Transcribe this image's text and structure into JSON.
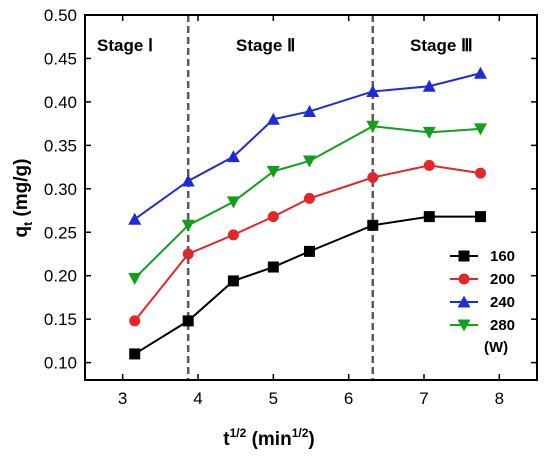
{
  "chart_data": {
    "type": "line",
    "xlim": [
      2.5,
      8.5
    ],
    "ylim": [
      0.08,
      0.5
    ],
    "xticks": [
      3,
      4,
      5,
      6,
      7,
      8
    ],
    "yticks": [
      0.1,
      0.15,
      0.2,
      0.25,
      0.3,
      0.35,
      0.4,
      0.45,
      0.5
    ],
    "ytick_labels": [
      "0.10",
      "0.15",
      "0.20",
      "0.25",
      "0.30",
      "0.35",
      "0.40",
      "0.45",
      "0.50"
    ],
    "xlabel": {
      "base": "t",
      "sup": "1/2",
      "unit_open": " (min",
      "unit_sup": "1/2",
      "unit_close": ")"
    },
    "ylabel": {
      "base": "q",
      "sub": "t",
      "rest": " (mg/g)"
    },
    "stage_dividers": [
      3.87,
      6.32
    ],
    "stages": [
      "Stage Ⅰ",
      "Stage Ⅱ",
      "Stage Ⅲ"
    ],
    "x": [
      3.16,
      3.87,
      4.47,
      5.0,
      5.48,
      6.32,
      7.07,
      7.75
    ],
    "series": [
      {
        "name": "160",
        "color": "#000000",
        "marker": "square",
        "values": [
          0.11,
          0.148,
          0.194,
          0.21,
          0.228,
          0.258,
          0.268,
          0.268
        ]
      },
      {
        "name": "200",
        "color": "#e3262a",
        "marker": "circle",
        "values": [
          0.148,
          0.225,
          0.247,
          0.268,
          0.289,
          0.313,
          0.327,
          0.318
        ]
      },
      {
        "name": "240",
        "color": "#1f2bd9",
        "marker": "triangle-up",
        "values": [
          0.265,
          0.309,
          0.337,
          0.38,
          0.389,
          0.412,
          0.418,
          0.433
        ]
      },
      {
        "name": "280",
        "color": "#10a01a",
        "marker": "triangle-down",
        "values": [
          0.197,
          0.258,
          0.285,
          0.32,
          0.332,
          0.372,
          0.365,
          0.369
        ]
      }
    ],
    "legend_unit": "(W)",
    "legend_position": "bottom-right",
    "grid": false
  }
}
